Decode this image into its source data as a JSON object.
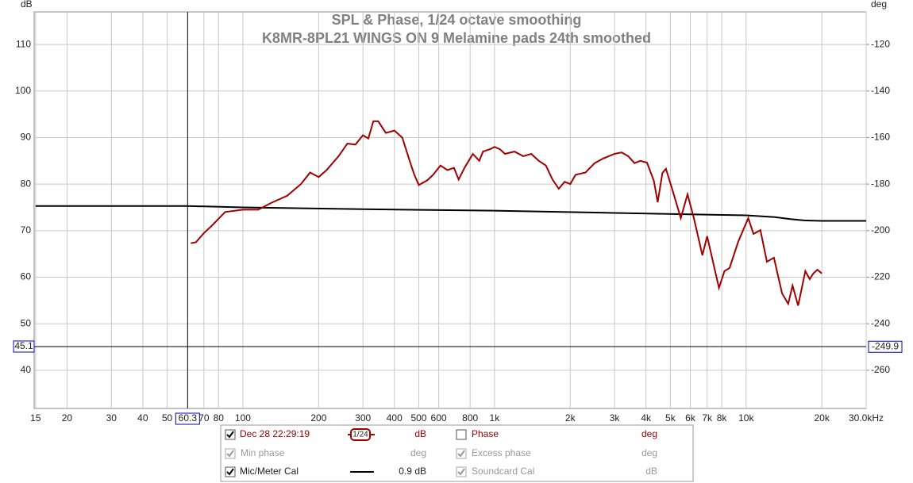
{
  "chart_data": {
    "type": "line",
    "title": "SPL & Phase, 1/24 octave smoothing",
    "subtitle": "K8MR-8PL21 WINGS ON 9 Melamine pads 24th smoothed",
    "y_label": "dB",
    "y2_label": "deg",
    "log_x": true,
    "grid": true,
    "xlim": [
      14.8,
      30000
    ],
    "ylim": [
      31.8,
      117.0
    ],
    "y2lim": [
      -276.4,
      -106.0
    ],
    "xticks": [
      15,
      20,
      30,
      40,
      50,
      70,
      80,
      100,
      200,
      300,
      400,
      500,
      600,
      800,
      {
        "value": 1000,
        "label": "1k"
      },
      {
        "value": 2000,
        "label": "2k"
      },
      {
        "value": 3000,
        "label": "3k"
      },
      {
        "value": 4000,
        "label": "4k"
      },
      {
        "value": 5000,
        "label": "5k"
      },
      {
        "value": 6000,
        "label": "6k"
      },
      {
        "value": 7000,
        "label": "7k"
      },
      {
        "value": 8000,
        "label": "8k"
      },
      {
        "value": 10000,
        "label": "10k"
      },
      {
        "value": 20000,
        "label": "20k"
      },
      {
        "value": 30000,
        "label": "30.0kHz"
      }
    ],
    "yticks": [
      40,
      50,
      60,
      70,
      80,
      90,
      100,
      110
    ],
    "y2ticks": [
      -260,
      -240,
      -220,
      -200,
      -180,
      -160,
      -140,
      -120
    ],
    "cursor": {
      "x": 60.3,
      "y": 45.1,
      "y2": -249.9
    },
    "series": [
      {
        "name": "Dec 28 22:29:19",
        "color": "#a00000",
        "unit": "dB",
        "smoothing": "1/24",
        "checked": true,
        "x": [
          62,
          65,
          70,
          75,
          85,
          100,
          115,
          130,
          150,
          170,
          185,
          200,
          215,
          240,
          260,
          280,
          300,
          315,
          330,
          345,
          370,
          400,
          430,
          460,
          480,
          500,
          540,
          570,
          610,
          650,
          690,
          720,
          760,
          820,
          870,
          900,
          960,
          1000,
          1050,
          1100,
          1200,
          1300,
          1400,
          1500,
          1600,
          1700,
          1800,
          1900,
          2000,
          2100,
          2300,
          2500,
          2700,
          3000,
          3200,
          3400,
          3600,
          3800,
          4040,
          4300,
          4450,
          4650,
          4800,
          5100,
          5500,
          5850,
          6200,
          6700,
          7000,
          7800,
          8200,
          8600,
          9300,
          10200,
          10700,
          11400,
          12100,
          12900,
          13900,
          14700,
          15300,
          16100,
          17200,
          17900,
          18500,
          19200,
          20000
        ],
        "values": [
          67.3,
          67.5,
          69.5,
          71,
          74,
          74.5,
          74.5,
          76,
          77.5,
          80,
          82.5,
          81.5,
          83,
          86,
          88.7,
          88.5,
          90.5,
          89.8,
          93.5,
          93.5,
          91,
          91.5,
          90,
          85,
          82,
          79.8,
          80.8,
          82,
          84,
          83,
          83.5,
          81,
          83.5,
          86.5,
          85,
          87,
          87.5,
          88,
          87.5,
          86.5,
          87,
          86,
          86.5,
          85,
          84,
          81,
          79,
          80.5,
          80,
          82,
          82.5,
          84.5,
          85.5,
          86.5,
          86.8,
          86,
          84.5,
          85,
          84.6,
          80.7,
          76.1,
          82.4,
          83.3,
          78.7,
          72.7,
          77.8,
          72.7,
          64.7,
          68.8,
          57.7,
          61.3,
          62,
          67.6,
          72.7,
          69.3,
          70.1,
          63.3,
          64.2,
          56.5,
          54.3,
          58.2,
          53.9,
          61.3,
          59.6,
          60.8,
          61.6,
          60.8
        ]
      },
      {
        "name": "Mic/Meter Cal",
        "color": "#000000",
        "unit_label": "0.9 dB",
        "checked": true,
        "x": [
          15,
          60,
          100,
          300,
          1000,
          3000,
          10000,
          13000,
          15000,
          17000,
          20000,
          30000
        ],
        "values": [
          75.3,
          75.3,
          75.0,
          74.6,
          74.3,
          73.8,
          73.3,
          72.9,
          72.5,
          72.2,
          72.1,
          72.1
        ]
      }
    ],
    "legend_extra": [
      {
        "name": "Phase",
        "unit": "deg",
        "checked": false,
        "enabled": true
      },
      {
        "name": "Min phase",
        "unit": "deg",
        "checked": true,
        "enabled": false
      },
      {
        "name": "Excess phase",
        "unit": "deg",
        "checked": true,
        "enabled": false
      },
      {
        "name": "Soundcard Cal",
        "unit": "dB",
        "checked": true,
        "enabled": false
      }
    ]
  }
}
